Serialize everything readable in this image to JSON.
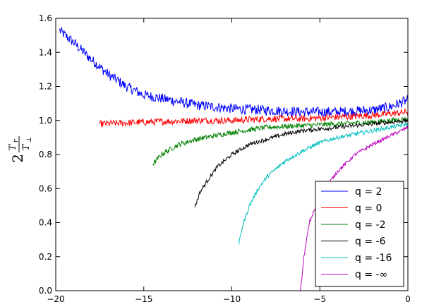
{
  "chart_data": {
    "type": "line",
    "title": "",
    "xlabel": "",
    "ylabel": "2 T_r / T_⊥",
    "ylabel_parts": {
      "factor": "2",
      "numerator": "T",
      "numerator_sub": "r",
      "denominator": "T",
      "denominator_sub": "⊥"
    },
    "xlim": [
      -20,
      0
    ],
    "ylim": [
      0.0,
      1.6
    ],
    "x_ticks": [
      -20,
      -15,
      -10,
      -5,
      0
    ],
    "x_tick_labels": [
      "−20",
      "−15",
      "−10",
      "−5",
      "0"
    ],
    "y_ticks": [
      0.0,
      0.2,
      0.4,
      0.6,
      0.8,
      1.0,
      1.2,
      1.4,
      1.6
    ],
    "y_tick_labels": [
      "0.0",
      "0.2",
      "0.4",
      "0.6",
      "0.8",
      "1.0",
      "1.2",
      "1.4",
      "1.6"
    ],
    "grid": false,
    "legend_position": "bottom-right",
    "series": [
      {
        "name": "q = 2",
        "color": "#0000ff",
        "noise": 0.03,
        "x": [
          -19.8,
          -19.0,
          -18.0,
          -17.0,
          -16.0,
          -15.0,
          -14.0,
          -13.0,
          -12.0,
          -11.0,
          -10.0,
          -8.0,
          -6.0,
          -4.0,
          -2.0,
          -1.0,
          0.0
        ],
        "y": [
          1.53,
          1.46,
          1.36,
          1.27,
          1.2,
          1.15,
          1.13,
          1.11,
          1.09,
          1.08,
          1.07,
          1.06,
          1.05,
          1.05,
          1.06,
          1.08,
          1.12
        ]
      },
      {
        "name": "q = 0",
        "color": "#ff0000",
        "noise": 0.02,
        "x": [
          -17.5,
          -15.0,
          -12.0,
          -10.0,
          -8.0,
          -6.0,
          -4.0,
          -2.0,
          0.0
        ],
        "y": [
          0.98,
          0.99,
          1.0,
          1.0,
          1.01,
          1.01,
          1.02,
          1.03,
          1.05
        ]
      },
      {
        "name": "q = -2",
        "color": "#008000",
        "noise": 0.015,
        "x": [
          -14.5,
          -14.0,
          -13.0,
          -12.0,
          -11.0,
          -10.0,
          -8.0,
          -6.0,
          -4.0,
          -2.0,
          0.0
        ],
        "y": [
          0.74,
          0.8,
          0.86,
          0.89,
          0.91,
          0.93,
          0.96,
          0.97,
          0.98,
          0.99,
          1.01
        ]
      },
      {
        "name": "q = -6",
        "color": "#000000",
        "noise": 0.012,
        "x": [
          -12.1,
          -11.8,
          -11.3,
          -10.8,
          -10.0,
          -9.0,
          -8.0,
          -7.0,
          -6.0,
          -4.0,
          -2.0,
          0.0
        ],
        "y": [
          0.49,
          0.58,
          0.66,
          0.73,
          0.8,
          0.86,
          0.89,
          0.92,
          0.94,
          0.96,
          0.98,
          1.0
        ]
      },
      {
        "name": "q = -16",
        "color": "#00bfbf",
        "noise": 0.012,
        "x": [
          -9.6,
          -9.4,
          -9.0,
          -8.5,
          -8.0,
          -7.0,
          -6.0,
          -5.0,
          -4.0,
          -2.0,
          0.0
        ],
        "y": [
          0.27,
          0.38,
          0.5,
          0.6,
          0.67,
          0.76,
          0.82,
          0.87,
          0.9,
          0.94,
          0.98
        ]
      },
      {
        "name": "q = -∞",
        "color": "#bf00bf",
        "noise": 0.01,
        "x": [
          -6.1,
          -5.9,
          -5.6,
          -5.0,
          -4.5,
          -4.0,
          -3.0,
          -2.0,
          -1.0,
          0.0
        ],
        "y": [
          0.0,
          0.2,
          0.4,
          0.55,
          0.63,
          0.7,
          0.8,
          0.86,
          0.91,
          0.96
        ]
      }
    ]
  }
}
